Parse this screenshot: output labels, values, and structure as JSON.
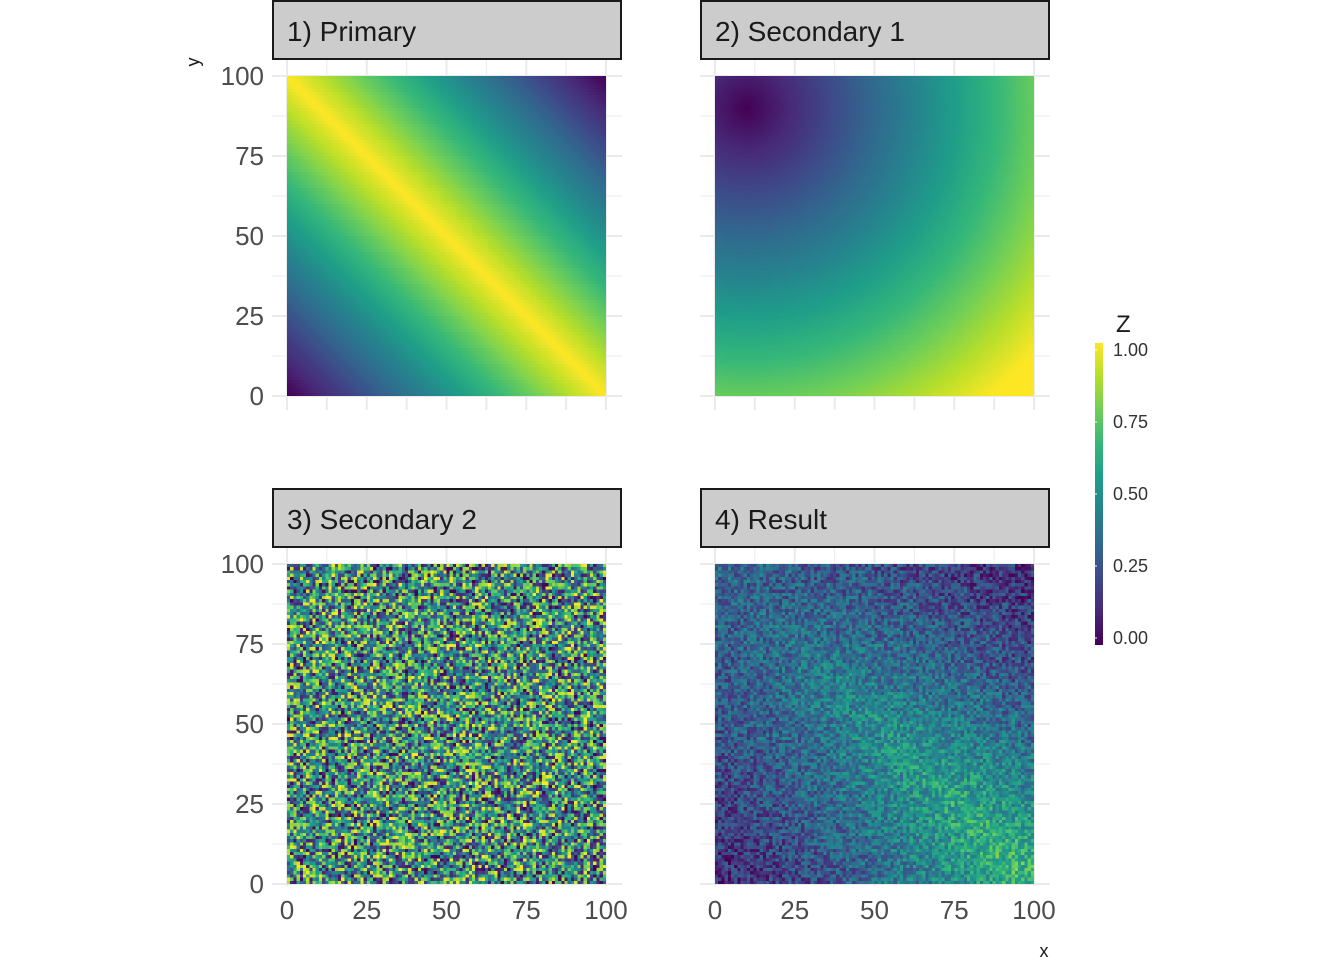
{
  "chart_data": {
    "type": "heatmap",
    "colormap": "viridis",
    "grid": true,
    "panels": [
      {
        "label": "1) Primary",
        "pattern": "primary"
      },
      {
        "label": "2) Secondary 1",
        "pattern": "secondary1"
      },
      {
        "label": "3) Secondary 2",
        "pattern": "secondary2"
      },
      {
        "label": "4) Result",
        "pattern": "result"
      }
    ],
    "x": {
      "label": "x",
      "range": [
        0,
        100
      ],
      "ticks": [
        "0",
        "25",
        "50",
        "75",
        "100"
      ]
    },
    "y": {
      "label": "y",
      "range": [
        0,
        100
      ],
      "ticks": [
        "0",
        "25",
        "50",
        "75",
        "100"
      ]
    },
    "legend": {
      "title": "Z",
      "position": "right",
      "range": [
        0,
        1
      ],
      "ticks": [
        "0.00",
        "0.25",
        "0.50",
        "0.75",
        "1.00"
      ]
    },
    "colors": {
      "strip_background": "#cccccc",
      "grid": "#ebebeb",
      "low": "#440154",
      "high": "#fde725"
    }
  }
}
